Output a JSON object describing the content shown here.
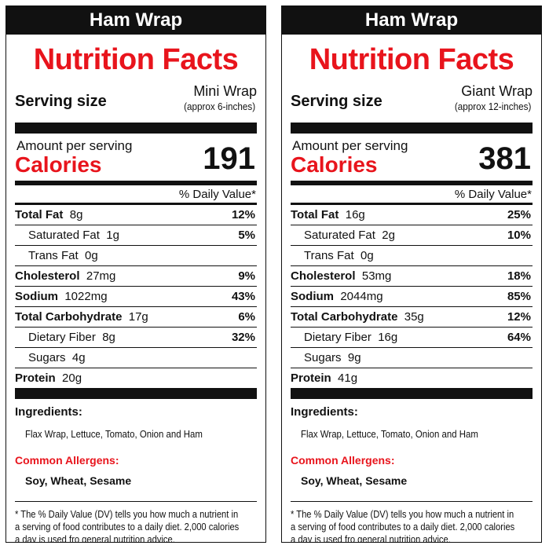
{
  "labels": [
    {
      "product_name": "Ham Wrap",
      "heading": "Nutrition Facts",
      "serving_label": "Serving size",
      "serving_value": "Mini Wrap",
      "serving_sub": "(approx 6-inches)",
      "amount_per_serving": "Amount per serving",
      "calories_label": "Calories",
      "calories_value": "191",
      "daily_value_header": "% Daily Value*",
      "nutrients": {
        "total_fat": {
          "label": "Total Fat",
          "amount": "8g",
          "dv": "12%"
        },
        "saturated_fat": {
          "label": "Saturated Fat",
          "amount": "1g",
          "dv": "5%"
        },
        "trans_fat": {
          "label": "Trans Fat",
          "amount": "0g",
          "dv": ""
        },
        "cholesterol": {
          "label": "Cholesterol",
          "amount": "27mg",
          "dv": "9%"
        },
        "sodium": {
          "label": "Sodium",
          "amount": "1022mg",
          "dv": "43%"
        },
        "total_carbohydrate": {
          "label": "Total Carbohydrate",
          "amount": "17g",
          "dv": "6%"
        },
        "dietary_fiber": {
          "label": "Dietary Fiber",
          "amount": "8g",
          "dv": "32%"
        },
        "sugars": {
          "label": "Sugars",
          "amount": "4g",
          "dv": ""
        },
        "protein": {
          "label": "Protein",
          "amount": "20g",
          "dv": ""
        }
      },
      "ingredients_header": "Ingredients:",
      "ingredients": "Flax Wrap, Lettuce, Tomato, Onion and Ham",
      "allergens_header": "Common Allergens:",
      "allergens": "Soy, Wheat, Sesame",
      "footnote_1": "* The % Daily Value (DV) tells you how much a nutrient in",
      "footnote_2": "a serving of food contributes to a daily diet.  2,000 calories",
      "footnote_3": "a day is used fro general nutrition advice."
    },
    {
      "product_name": "Ham Wrap",
      "heading": "Nutrition Facts",
      "serving_label": "Serving size",
      "serving_value": "Giant Wrap",
      "serving_sub": "(approx 12-inches)",
      "amount_per_serving": "Amount per serving",
      "calories_label": "Calories",
      "calories_value": "381",
      "daily_value_header": "% Daily Value*",
      "nutrients": {
        "total_fat": {
          "label": "Total Fat",
          "amount": "16g",
          "dv": "25%"
        },
        "saturated_fat": {
          "label": "Saturated Fat",
          "amount": "2g",
          "dv": "10%"
        },
        "trans_fat": {
          "label": "Trans Fat",
          "amount": "0g",
          "dv": ""
        },
        "cholesterol": {
          "label": "Cholesterol",
          "amount": "53mg",
          "dv": "18%"
        },
        "sodium": {
          "label": "Sodium",
          "amount": "2044mg",
          "dv": "85%"
        },
        "total_carbohydrate": {
          "label": "Total Carbohydrate",
          "amount": "35g",
          "dv": "12%"
        },
        "dietary_fiber": {
          "label": "Dietary Fiber",
          "amount": "16g",
          "dv": "64%"
        },
        "sugars": {
          "label": "Sugars",
          "amount": "9g",
          "dv": ""
        },
        "protein": {
          "label": "Protein",
          "amount": "41g",
          "dv": ""
        }
      },
      "ingredients_header": "Ingredients:",
      "ingredients": "Flax Wrap, Lettuce, Tomato, Onion and Ham",
      "allergens_header": "Common Allergens:",
      "allergens": "Soy, Wheat, Sesame",
      "footnote_1": "* The % Daily Value (DV) tells you how much a nutrient in",
      "footnote_2": "a serving of food contributes to a daily diet.  2,000 calories",
      "footnote_3": "a day is used fro general nutrition advice."
    }
  ],
  "colors": {
    "accent": "#e8141c",
    "ink": "#111111",
    "background": "#ffffff"
  }
}
